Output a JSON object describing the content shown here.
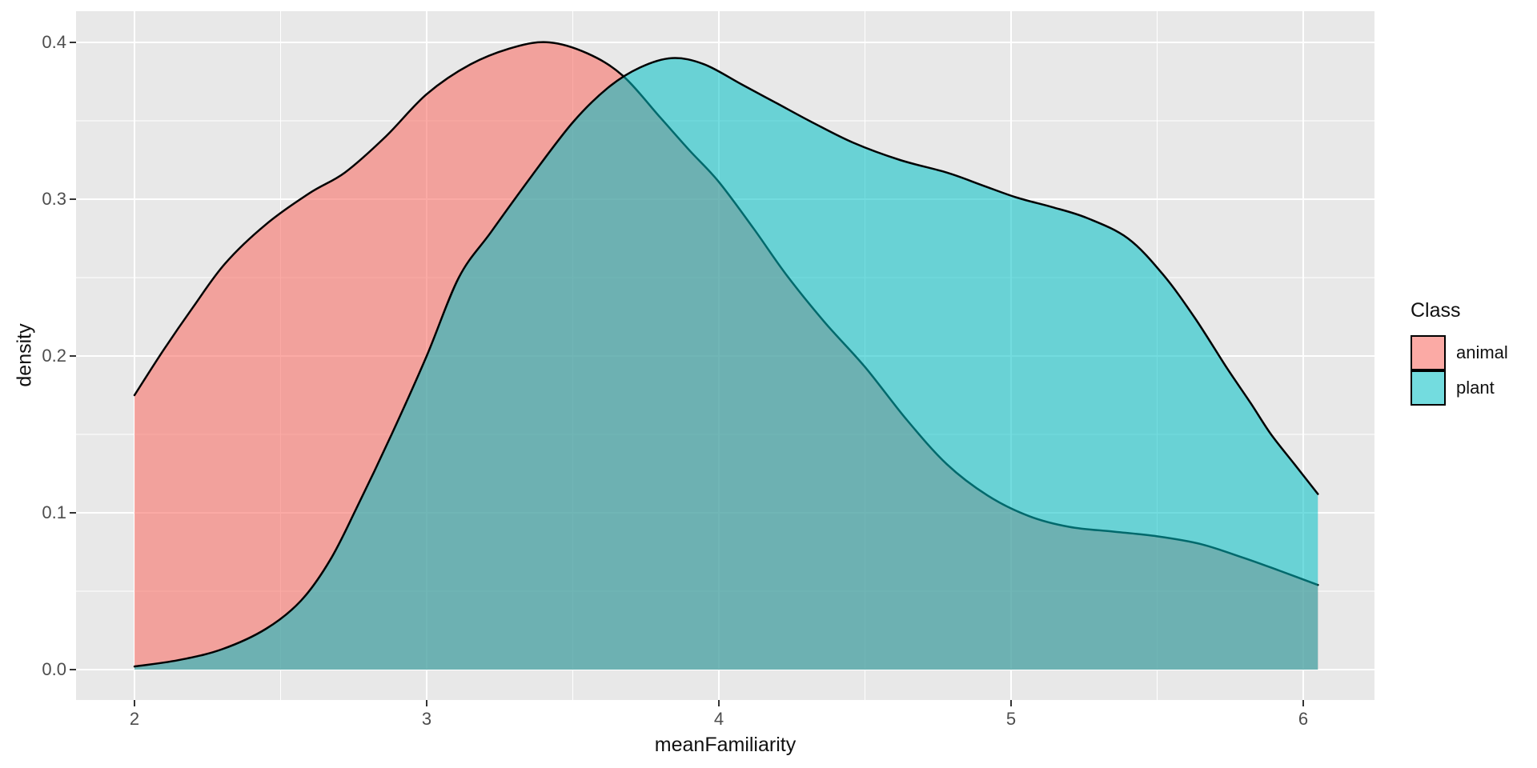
{
  "figure": {
    "kind": "ggplot-density-plot",
    "background": "#FFFFFF"
  },
  "axes": {
    "x": {
      "title": "meanFamiliarity"
    },
    "y": {
      "title": "density"
    }
  },
  "legend": {
    "title": "Class",
    "position": "right",
    "items": [
      {
        "label": "animal",
        "fill": "rgba(248,118,109,0.62)"
      },
      {
        "label": "plant",
        "fill": "rgba(0,191,196,0.55)"
      }
    ]
  },
  "chart_data": {
    "type": "area",
    "variant": "kernel-density",
    "title": "",
    "xlabel": "meanFamiliarity",
    "ylabel": "density",
    "xlim": [
      1.8,
      6.244
    ],
    "ylim": [
      -0.019,
      0.42
    ],
    "grid": true,
    "panel_background": "#E8E8E8",
    "grid_color": "#FFFFFF",
    "tick_color": "#333333",
    "tick_label_color": "#4D4D4D",
    "x_ticks": {
      "values": [
        2,
        3,
        4,
        5,
        6
      ],
      "labels": [
        "2",
        "3",
        "4",
        "5",
        "6"
      ]
    },
    "y_ticks": {
      "values": [
        0.0,
        0.1,
        0.2,
        0.3,
        0.4
      ],
      "labels": [
        "0.0",
        "0.1",
        "0.2",
        "0.3",
        "0.4"
      ]
    },
    "x_minor": [
      2.5,
      3.5,
      4.5,
      5.5
    ],
    "y_minor": [
      0.05,
      0.15,
      0.25,
      0.35
    ],
    "legend_position": "right",
    "series": [
      {
        "name": "animal",
        "fill": "rgba(248,118,109,0.62)",
        "stroke": "#000000",
        "points": [
          [
            2.0,
            0.175
          ],
          [
            2.1,
            0.204
          ],
          [
            2.2,
            0.231
          ],
          [
            2.31,
            0.259
          ],
          [
            2.45,
            0.284
          ],
          [
            2.6,
            0.304
          ],
          [
            2.72,
            0.317
          ],
          [
            2.86,
            0.34
          ],
          [
            3.0,
            0.367
          ],
          [
            3.15,
            0.386
          ],
          [
            3.3,
            0.397
          ],
          [
            3.42,
            0.4
          ],
          [
            3.55,
            0.393
          ],
          [
            3.67,
            0.379
          ],
          [
            3.8,
            0.352
          ],
          [
            3.9,
            0.331
          ],
          [
            4.0,
            0.311
          ],
          [
            4.12,
            0.281
          ],
          [
            4.23,
            0.252
          ],
          [
            4.36,
            0.222
          ],
          [
            4.5,
            0.193
          ],
          [
            4.64,
            0.16
          ],
          [
            4.78,
            0.131
          ],
          [
            4.92,
            0.111
          ],
          [
            5.06,
            0.098
          ],
          [
            5.2,
            0.091
          ],
          [
            5.35,
            0.088
          ],
          [
            5.5,
            0.085
          ],
          [
            5.65,
            0.08
          ],
          [
            5.8,
            0.071
          ],
          [
            5.92,
            0.063
          ],
          [
            6.05,
            0.054
          ]
        ]
      },
      {
        "name": "plant",
        "fill": "rgba(0,191,196,0.55)",
        "stroke": "#000000",
        "points": [
          [
            2.0,
            0.002
          ],
          [
            2.15,
            0.006
          ],
          [
            2.3,
            0.013
          ],
          [
            2.45,
            0.026
          ],
          [
            2.57,
            0.044
          ],
          [
            2.67,
            0.07
          ],
          [
            2.76,
            0.103
          ],
          [
            2.88,
            0.15
          ],
          [
            3.0,
            0.2
          ],
          [
            3.11,
            0.25
          ],
          [
            3.22,
            0.279
          ],
          [
            3.36,
            0.315
          ],
          [
            3.5,
            0.349
          ],
          [
            3.62,
            0.371
          ],
          [
            3.73,
            0.384
          ],
          [
            3.84,
            0.39
          ],
          [
            3.95,
            0.386
          ],
          [
            4.08,
            0.373
          ],
          [
            4.2,
            0.361
          ],
          [
            4.32,
            0.349
          ],
          [
            4.46,
            0.336
          ],
          [
            4.62,
            0.325
          ],
          [
            4.78,
            0.317
          ],
          [
            4.9,
            0.309
          ],
          [
            5.02,
            0.301
          ],
          [
            5.14,
            0.295
          ],
          [
            5.26,
            0.288
          ],
          [
            5.4,
            0.275
          ],
          [
            5.52,
            0.252
          ],
          [
            5.63,
            0.224
          ],
          [
            5.74,
            0.192
          ],
          [
            5.82,
            0.17
          ],
          [
            5.89,
            0.15
          ],
          [
            5.97,
            0.131
          ],
          [
            6.05,
            0.112
          ]
        ]
      }
    ]
  }
}
